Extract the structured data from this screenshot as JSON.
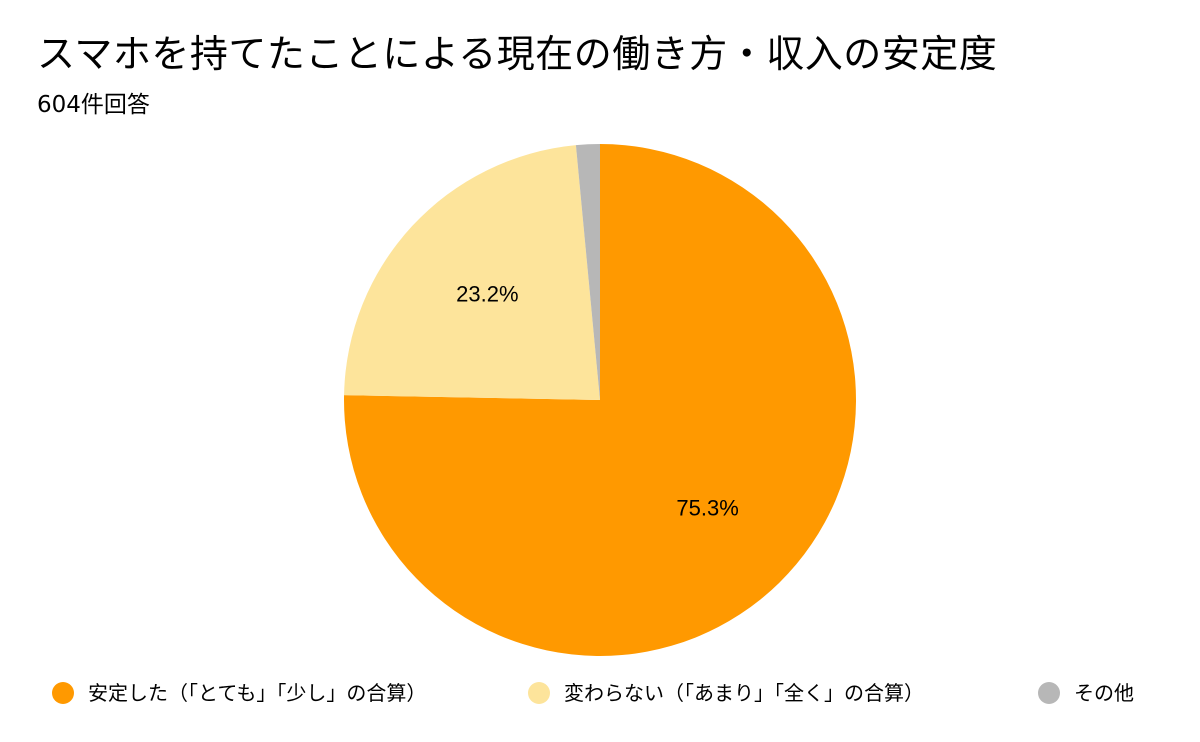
{
  "title": "スマホを持てたことによる現在の働き方・収入の安定度",
  "subtitle": "604件回答",
  "chart_data": {
    "type": "pie",
    "title": "スマホを持てたことによる現在の働き方・収入の安定度",
    "subtitle": "604件回答",
    "categories": [
      "安定した（「とても」「少し」の合算）",
      "変わらない（「あまり」「全く」の合算）",
      "その他"
    ],
    "values": [
      75.3,
      23.2,
      1.5
    ],
    "labels": [
      "75.3%",
      "23.2%",
      ""
    ],
    "colors": [
      "#FF9900",
      "#FDE49B",
      "#B7B7B7"
    ],
    "legend_position": "bottom"
  }
}
